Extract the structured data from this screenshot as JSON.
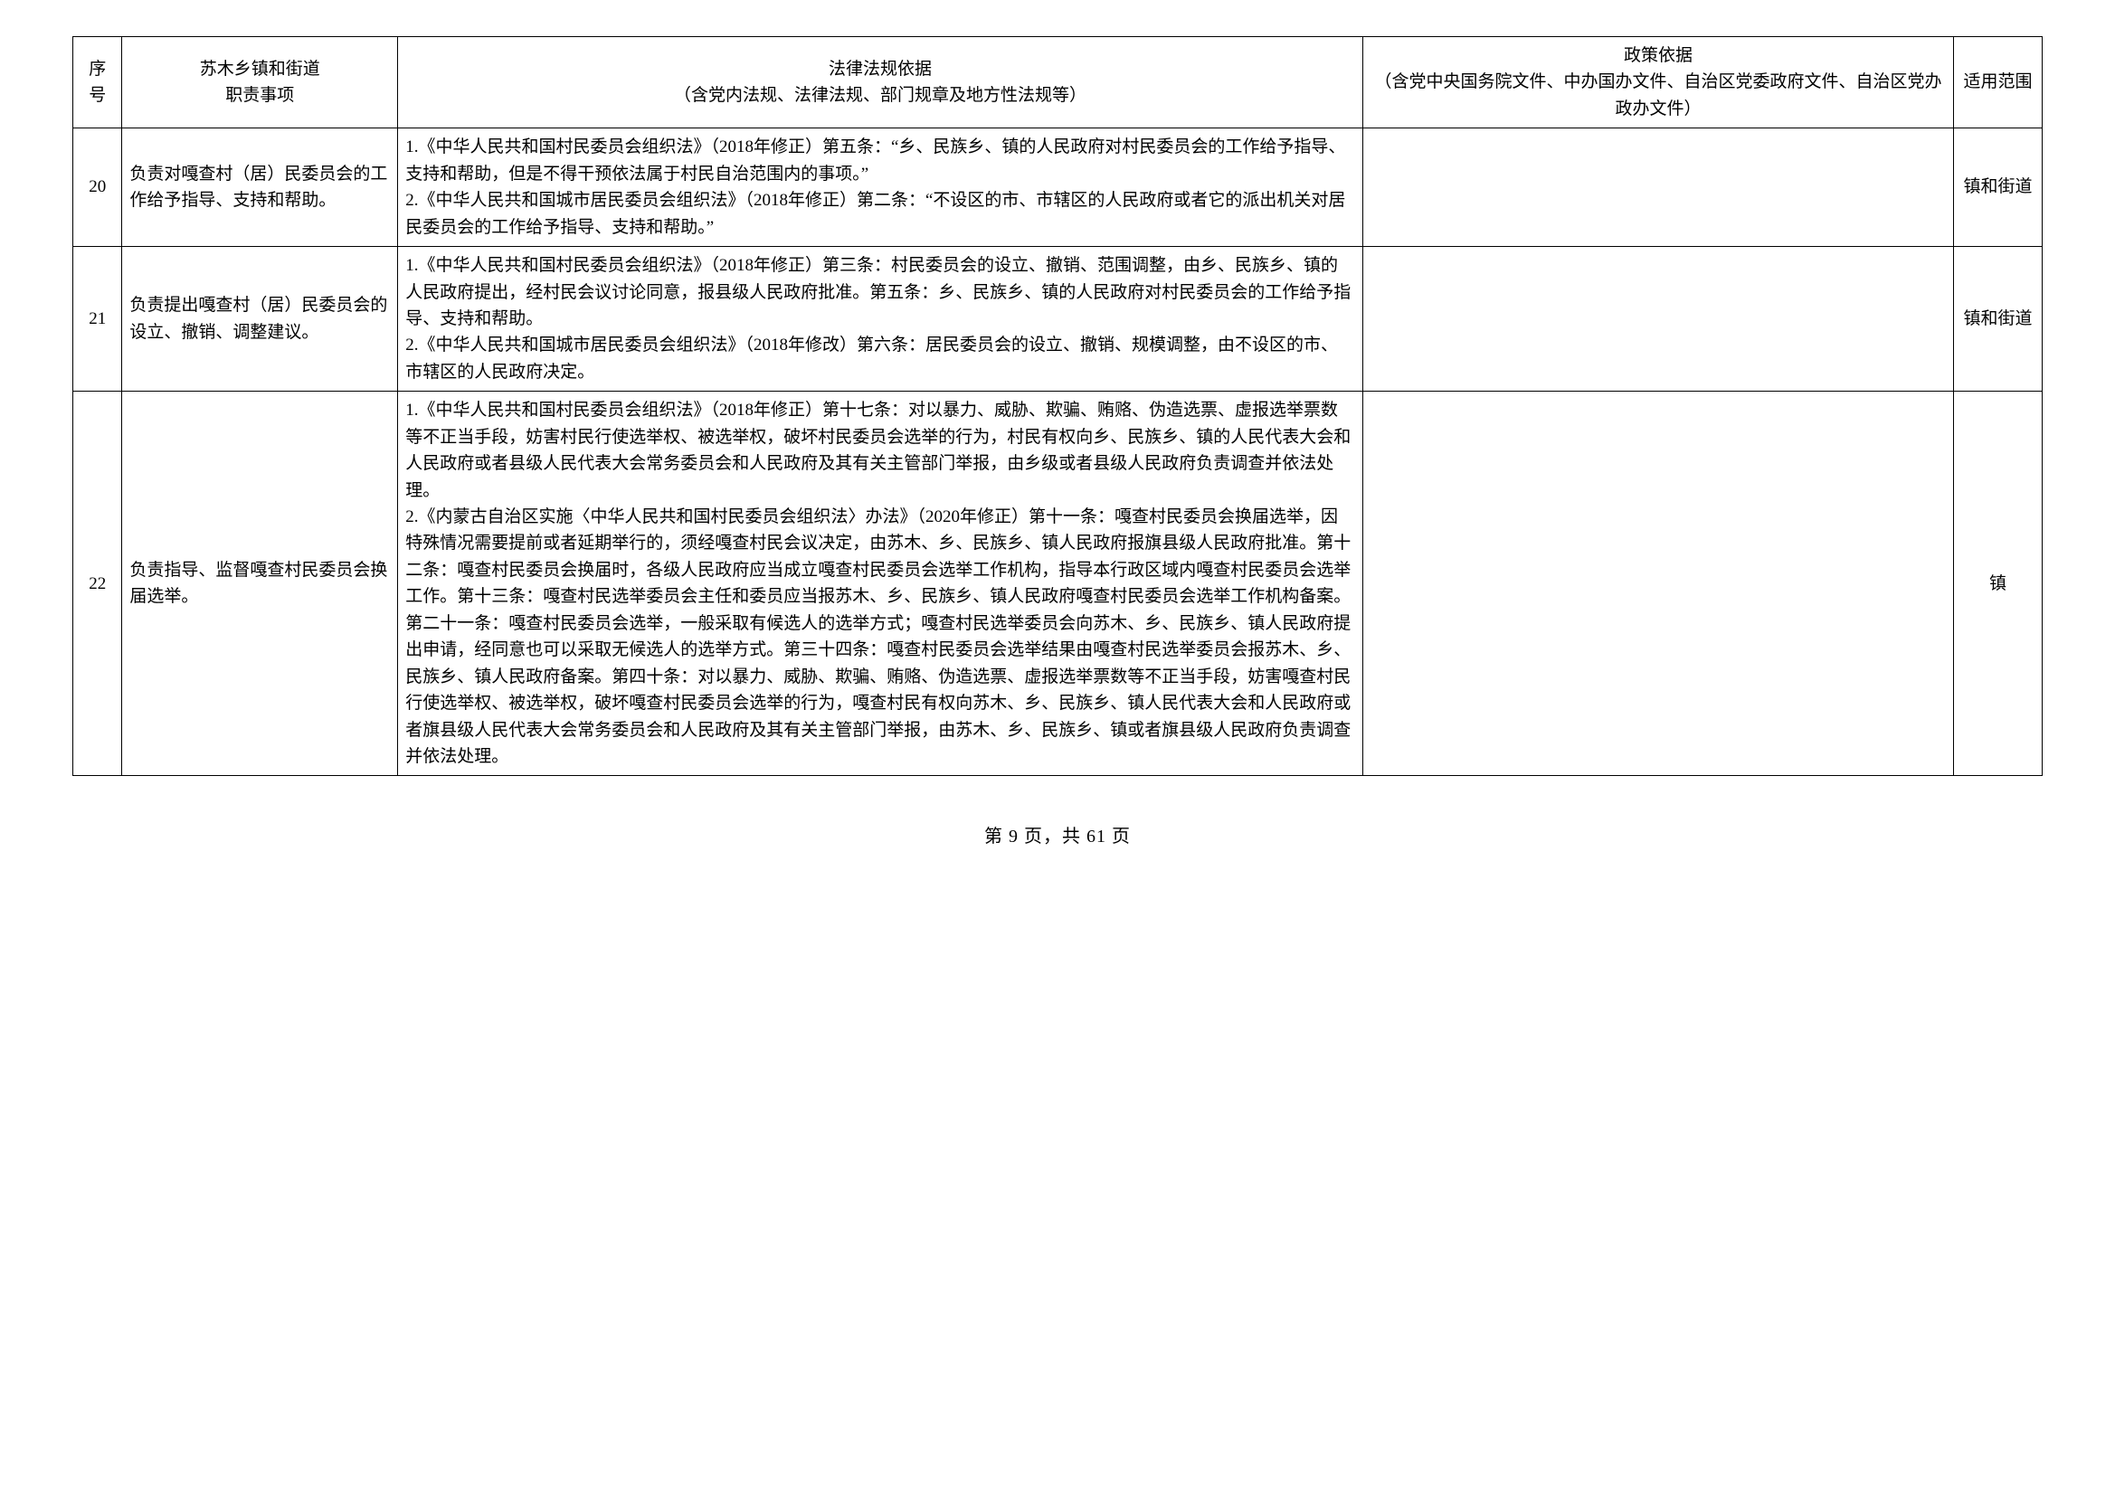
{
  "table": {
    "headers": {
      "num": "序号",
      "duty": "苏木乡镇和街道\n职责事项",
      "legal": "法律法规依据\n（含党内法规、法律法规、部门规章及地方性法规等）",
      "policy": "政策依据\n（含党中央国务院文件、中办国办文件、自治区党委政府文件、自治区党办政办文件）",
      "scope": "适用范围"
    },
    "rows": [
      {
        "num": "20",
        "duty": "负责对嘎查村（居）民委员会的工作给予指导、支持和帮助。",
        "legal": "1.《中华人民共和国村民委员会组织法》（2018年修正）第五条：“乡、民族乡、镇的人民政府对村民委员会的工作给予指导、支持和帮助，但是不得干预依法属于村民自治范围内的事项。”\n2.《中华人民共和国城市居民委员会组织法》（2018年修正）第二条：“不设区的市、市辖区的人民政府或者它的派出机关对居民委员会的工作给予指导、支持和帮助。”",
        "policy": "",
        "scope": "镇和街道"
      },
      {
        "num": "21",
        "duty": "负责提出嘎查村（居）民委员会的设立、撤销、调整建议。",
        "legal": "1.《中华人民共和国村民委员会组织法》（2018年修正）第三条：村民委员会的设立、撤销、范围调整，由乡、民族乡、镇的人民政府提出，经村民会议讨论同意，报县级人民政府批准。第五条：乡、民族乡、镇的人民政府对村民委员会的工作给予指导、支持和帮助。\n2.《中华人民共和国城市居民委员会组织法》（2018年修改）第六条：居民委员会的设立、撤销、规模调整，由不设区的市、市辖区的人民政府决定。",
        "policy": "",
        "scope": "镇和街道"
      },
      {
        "num": "22",
        "duty": "负责指导、监督嘎查村民委员会换届选举。",
        "legal": "1.《中华人民共和国村民委员会组织法》（2018年修正）第十七条：对以暴力、威胁、欺骗、贿赂、伪造选票、虚报选举票数等不正当手段，妨害村民行使选举权、被选举权，破坏村民委员会选举的行为，村民有权向乡、民族乡、镇的人民代表大会和人民政府或者县级人民代表大会常务委员会和人民政府及其有关主管部门举报，由乡级或者县级人民政府负责调查并依法处理。\n2.《内蒙古自治区实施〈中华人民共和国村民委员会组织法〉办法》（2020年修正）第十一条：嘎查村民委员会换届选举，因特殊情况需要提前或者延期举行的，须经嘎查村民会议决定，由苏木、乡、民族乡、镇人民政府报旗县级人民政府批准。第十二条：嘎查村民委员会换届时，各级人民政府应当成立嘎查村民委员会选举工作机构，指导本行政区域内嘎查村民委员会选举工作。第十三条：嘎查村民选举委员会主任和委员应当报苏木、乡、民族乡、镇人民政府嘎查村民委员会选举工作机构备案。第二十一条：嘎查村民委员会选举，一般采取有候选人的选举方式；嘎查村民选举委员会向苏木、乡、民族乡、镇人民政府提出申请，经同意也可以采取无候选人的选举方式。第三十四条：嘎查村民委员会选举结果由嘎查村民选举委员会报苏木、乡、民族乡、镇人民政府备案。第四十条：对以暴力、威胁、欺骗、贿赂、伪造选票、虚报选举票数等不正当手段，妨害嘎查村民行使选举权、被选举权，破坏嘎查村民委员会选举的行为，嘎查村民有权向苏木、乡、民族乡、镇人民代表大会和人民政府或者旗县级人民代表大会常务委员会和人民政府及其有关主管部门举报，由苏木、乡、民族乡、镇或者旗县级人民政府负责调查并依法处理。",
        "policy": "",
        "scope": "镇"
      }
    ],
    "columnWidths": {
      "num": "2.5%",
      "duty": "14%",
      "legal": "49%",
      "policy": "30%",
      "scope": "4.5%"
    },
    "border_color": "#000000",
    "background_color": "#ffffff",
    "font_size": 19,
    "line_height": 1.55
  },
  "footer": "第 9 页，共 61 页"
}
